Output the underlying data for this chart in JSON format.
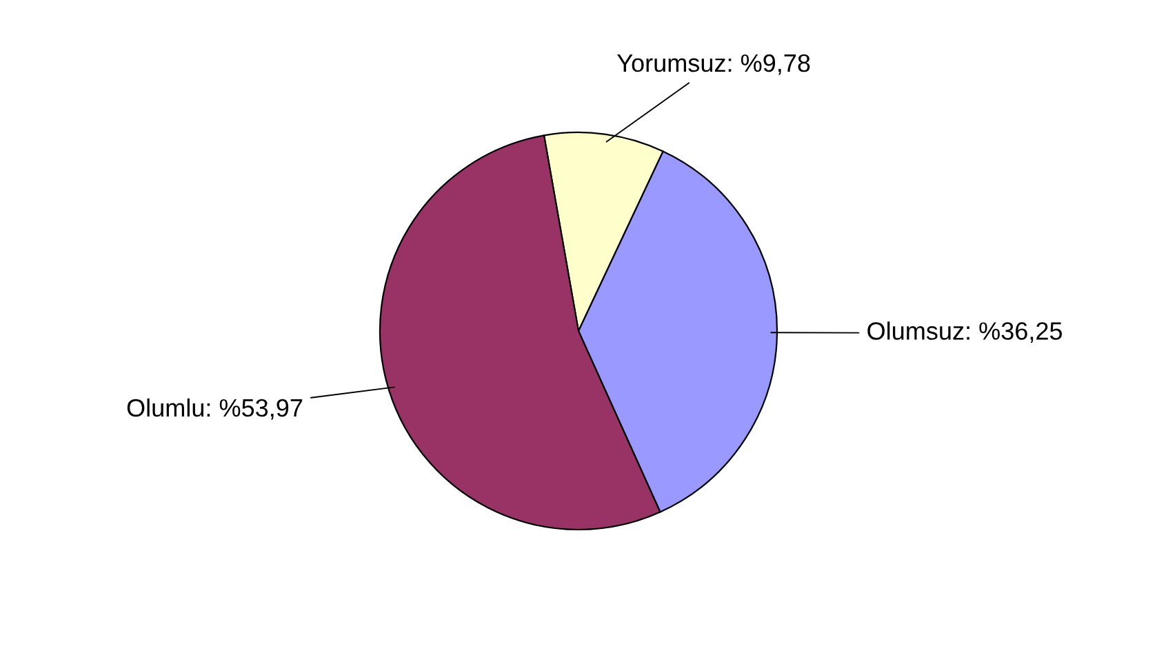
{
  "chart_data": {
    "type": "pie",
    "categories": [
      "Yorumsuz",
      "Olumsuz",
      "Olumlu"
    ],
    "values": [
      9.78,
      36.25,
      53.97
    ],
    "value_labels": [
      "%9,78",
      "%36,25",
      "%53,97"
    ],
    "colors": [
      "#ffffcc",
      "#9999ff",
      "#993366"
    ]
  }
}
